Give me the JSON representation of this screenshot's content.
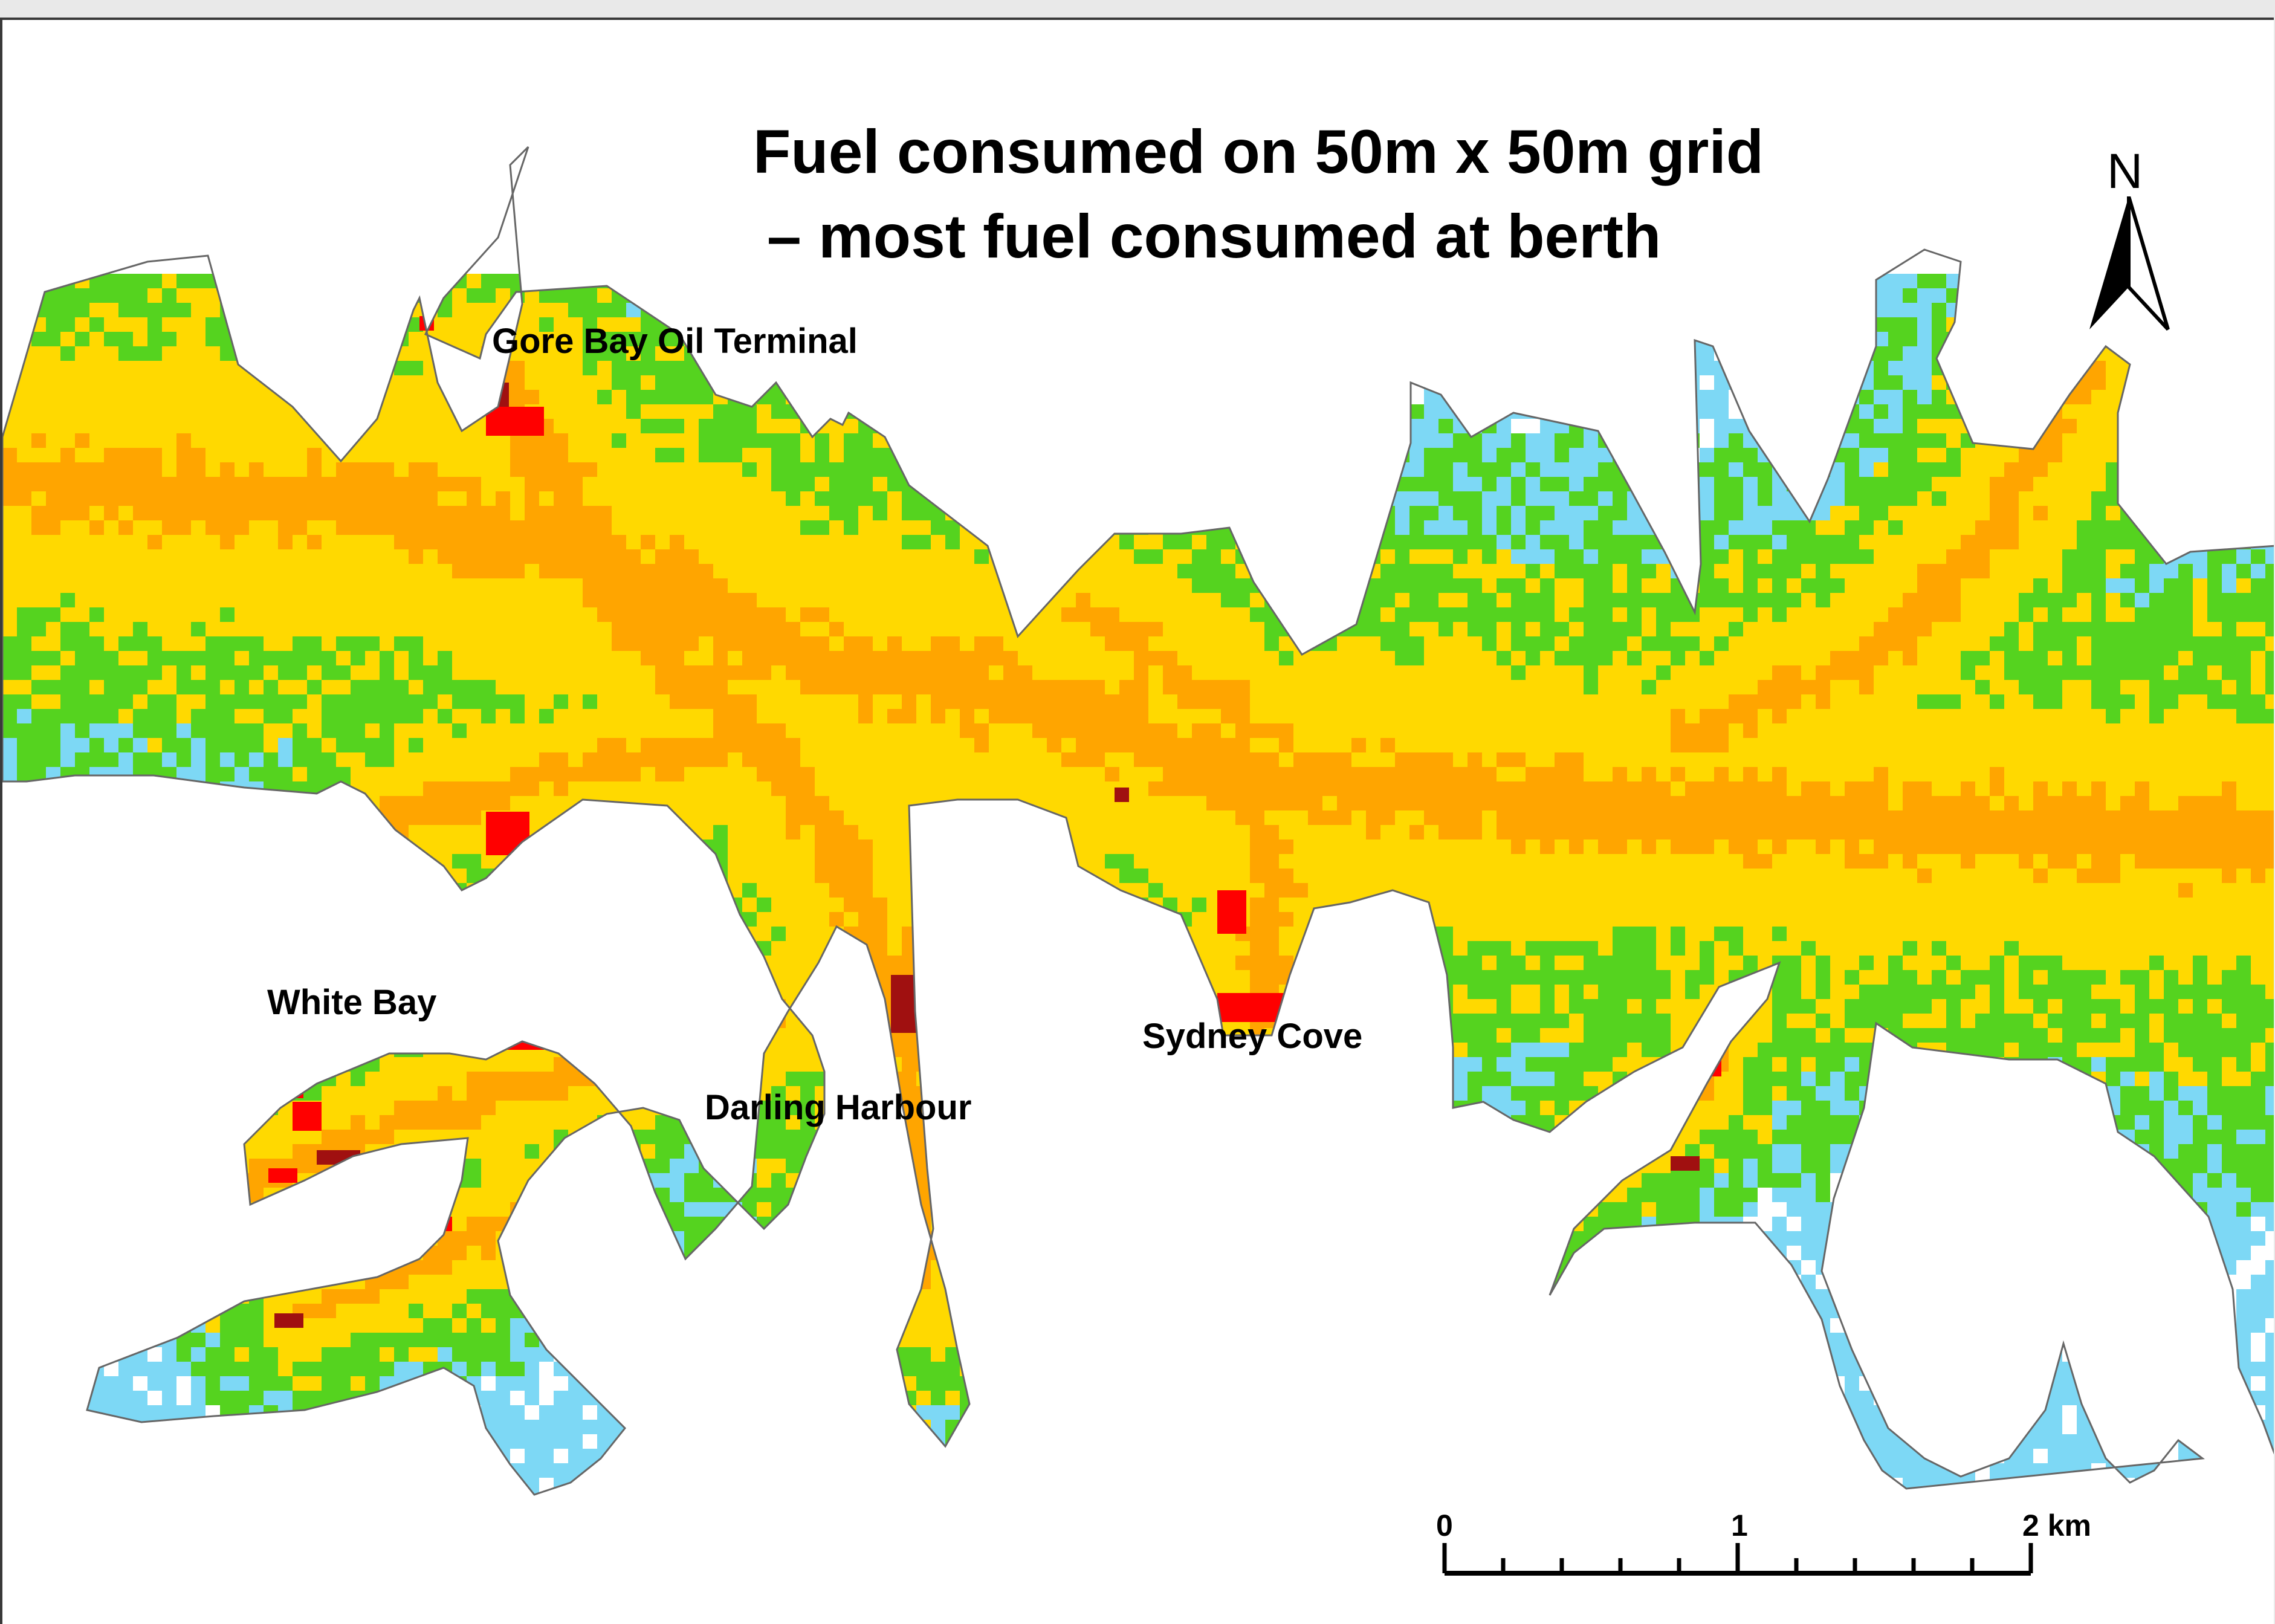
{
  "title_line1": "Fuel consumed on 50m x 50m grid",
  "title_line2": "– most fuel consumed at berth",
  "places": {
    "gore_bay": "Gore Bay Oil Terminal",
    "white_bay": "White Bay",
    "darling_harbour": "Darling Harbour",
    "sydney_cove": "Sydney Cove"
  },
  "north_label": "N",
  "scale": {
    "label_0": "0",
    "label_1": "1",
    "label_2": "2 km"
  },
  "fuel_class_colors": {
    "lowest": "#7dd8f5",
    "low": "#55d31f",
    "medium": "#ffd900",
    "high": "#ffa500",
    "very_high": "#ff0000",
    "highest": "#a01010"
  },
  "land_color": "#ffffff",
  "outline_color": "#666666"
}
